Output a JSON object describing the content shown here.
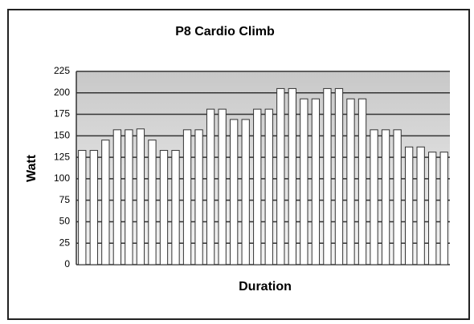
{
  "chart_data": {
    "type": "bar",
    "title": "P8 Cardio Climb",
    "x_label": "Duration",
    "y_label": "Watt",
    "categories": [
      null,
      null,
      null,
      null,
      null,
      null,
      null,
      null,
      null,
      null,
      null,
      null,
      null,
      null,
      null,
      null,
      null,
      null,
      null,
      null,
      null,
      null,
      null,
      null,
      null,
      null,
      null,
      null,
      null,
      null,
      null,
      null
    ],
    "values": [
      133,
      133,
      145,
      157,
      157,
      158,
      145,
      133,
      133,
      157,
      157,
      181,
      181,
      169,
      169,
      181,
      181,
      205,
      205,
      193,
      193,
      205,
      205,
      193,
      193,
      157,
      157,
      157,
      137,
      137,
      131,
      131
    ],
    "color": "#ffffff",
    "ylim": [
      0,
      225
    ],
    "yticks": [
      0,
      25,
      50,
      75,
      100,
      125,
      150,
      175,
      200,
      225
    ],
    "grid": true
  }
}
